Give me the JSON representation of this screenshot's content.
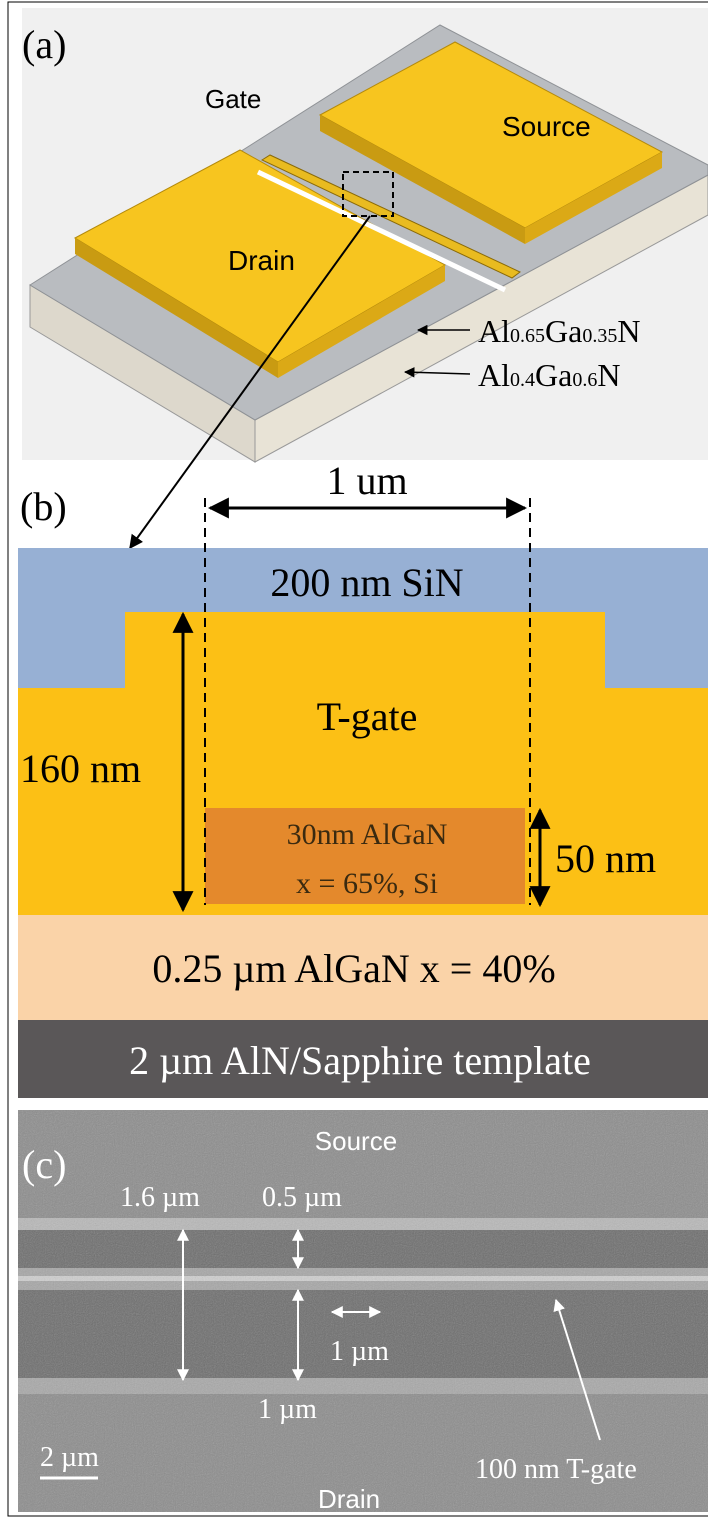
{
  "panels": {
    "a": {
      "label": "(a)",
      "gate": "Gate",
      "source": "Source",
      "drain": "Drain",
      "layers": [
        [
          "Al",
          "0.65",
          "Ga",
          "0.35",
          "N"
        ],
        [
          "Al",
          "0.4",
          "Ga",
          "0.6",
          "N"
        ]
      ]
    },
    "b": {
      "label": "(b)",
      "width": "1 um",
      "sin": "200 nm SiN",
      "gate": "T-gate",
      "height": "160 nm",
      "barrier": [
        "30nm AlGaN",
        "x = 65%, Si"
      ],
      "recess": "50 nm",
      "channel": "0.25 µm AlGaN x = 40%",
      "template": "2 µm AlN/Sapphire template"
    },
    "c": {
      "label": "(c)",
      "source": "Source",
      "drain": "Drain",
      "span": "1.6 µm",
      "gap_top": "0.5 µm",
      "gate_len": "1 µm",
      "gap_bottom": "1 µm",
      "scale": "2 µm",
      "gate": "100 nm T-gate"
    }
  }
}
